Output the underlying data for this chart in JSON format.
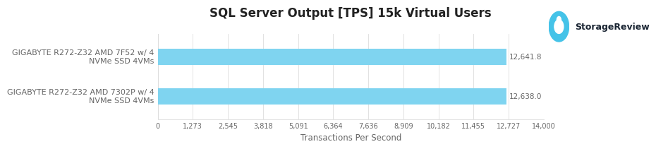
{
  "title": "SQL Server Output [TPS] 15k Virtual Users",
  "xlabel": "Transactions Per Second",
  "categories": [
    "GIGABYTE R272-Z32 AMD 7F52 w/ 4\nNVMe SSD 4VMs",
    "GIGABYTE R272-Z32 AMD 7302P w/ 4\nNVMe SSD 4VMs"
  ],
  "values": [
    12641.8,
    12638.0
  ],
  "value_labels": [
    "12,641.8",
    "12,638.0"
  ],
  "bar_color": "#7FD4F0",
  "xlim": [
    0,
    14000
  ],
  "xticks": [
    0,
    1273,
    2545,
    3818,
    5091,
    6364,
    7636,
    8909,
    10182,
    11455,
    12727,
    14000
  ],
  "xtick_labels": [
    "0",
    "1,273",
    "2,545",
    "3,818",
    "5,091",
    "6,364",
    "7,636",
    "8,909",
    "10,182",
    "11,455",
    "12,727",
    "14,000"
  ],
  "grid_color": "#DDDDDD",
  "background_color": "#FFFFFF",
  "bar_height": 0.42,
  "title_fontsize": 12,
  "label_fontsize": 8,
  "tick_fontsize": 7,
  "value_fontsize": 7.5,
  "text_color": "#666666",
  "title_color": "#222222",
  "logo_text": "StorageReview",
  "logo_text_color": "#1a2533",
  "logo_circle_color": "#45C3E8",
  "logo_fontsize": 9
}
